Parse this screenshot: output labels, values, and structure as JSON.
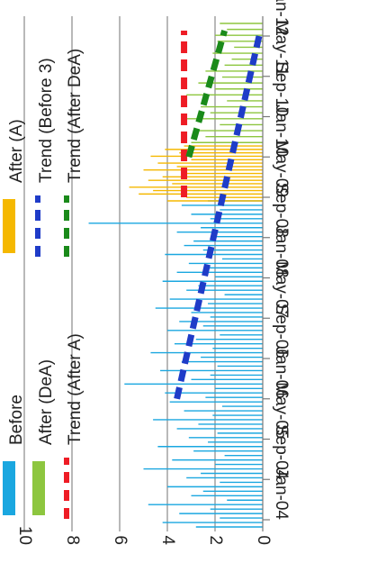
{
  "chart_data": {
    "type": "bar",
    "orientation": "rotated-90",
    "title": "",
    "xlabel": "",
    "ylabel": "",
    "ylim": [
      0,
      10
    ],
    "yticks": [
      "0",
      "2",
      "4",
      "6",
      "8",
      "10"
    ],
    "xticks": [
      "Jan-04",
      "Sep-04",
      "May-05",
      "Jan-06",
      "Sep-06",
      "May-07",
      "Jan-08",
      "Sep-08",
      "May-09",
      "Jan-10",
      "Sep-10",
      "May-11",
      "Jan-12"
    ],
    "grid": true,
    "legend_position": "top",
    "legend": [
      {
        "label": "Before",
        "kind": "bar",
        "color": "#1aa7e0"
      },
      {
        "label": "After (A)",
        "kind": "bar",
        "color": "#f5b800"
      },
      {
        "label": "After (DeA)",
        "kind": "bar",
        "color": "#8dc63f"
      },
      {
        "label": "Trend (Before 3)",
        "kind": "dashed-line",
        "color": "#1f3cc8"
      },
      {
        "label": "Trend (After A)",
        "kind": "dashed-line",
        "color": "#ee1c25"
      },
      {
        "label": "Trend (After DeA)",
        "kind": "dashed-line",
        "color": "#1a8a1a"
      }
    ],
    "series": [
      {
        "name": "Before",
        "color": "#1aa7e0",
        "values": [
          2.8,
          4.2,
          1.8,
          3.5,
          2.2,
          4.8,
          1.5,
          3.0,
          2.5,
          4.0,
          1.8,
          3.2,
          2.6,
          5.0,
          2.0,
          3.8,
          1.6,
          2.9,
          4.4,
          2.3,
          3.1,
          1.9,
          3.6,
          2.7,
          4.6,
          2.1,
          3.3,
          1.7,
          3.9,
          2.4,
          4.1,
          2.0,
          5.8,
          3.0,
          2.2,
          4.3,
          1.9,
          3.4,
          2.6,
          4.7,
          2.1,
          3.7,
          2.8,
          1.8,
          4.0,
          2.5,
          3.5,
          2.2,
          3.0,
          4.5,
          2.3,
          3.9,
          1.6,
          3.2,
          2.7,
          4.2,
          2.0,
          3.6,
          2.4,
          3.1,
          1.7,
          4.1,
          2.5,
          3.3,
          2.9,
          2.0,
          3.6,
          2.6,
          7.3,
          2.2,
          3.0,
          1.8,
          3.4,
          2.3
        ]
      },
      {
        "name": "After (A)",
        "color": "#f5b800",
        "values": [
          4.0,
          3.2,
          5.2,
          4.6,
          5.6,
          3.8,
          4.8,
          4.2,
          3.4,
          5.0,
          3.6,
          4.4,
          3.0,
          4.7,
          3.5,
          4.1,
          3.3,
          2.8
        ]
      },
      {
        "name": "After (DeA)",
        "color": "#8dc63f",
        "values": [
          3.0,
          2.4,
          2.8,
          1.8,
          3.4,
          2.2,
          2.6,
          1.5,
          3.2,
          2.0,
          2.7,
          1.7,
          2.4,
          1.6,
          1.3,
          2.1,
          1.2,
          1.9,
          2.0,
          1.5,
          1.8
        ]
      },
      {
        "name": "Trend (Before 3)",
        "type": "trend",
        "color": "#1f3cc8",
        "x": [
          "Jan-06",
          "Jan-12"
        ],
        "values": [
          3.6,
          0.1
        ]
      },
      {
        "name": "Trend (After A)",
        "type": "trend",
        "color": "#ee1c25",
        "x": [
          "May-09",
          "Jan-12"
        ],
        "values": [
          3.3,
          3.3
        ]
      },
      {
        "name": "Trend (After DeA)",
        "type": "trend",
        "color": "#1a8a1a",
        "x": [
          "Jan-10",
          "Jan-12"
        ],
        "values": [
          3.1,
          1.6
        ]
      }
    ]
  }
}
